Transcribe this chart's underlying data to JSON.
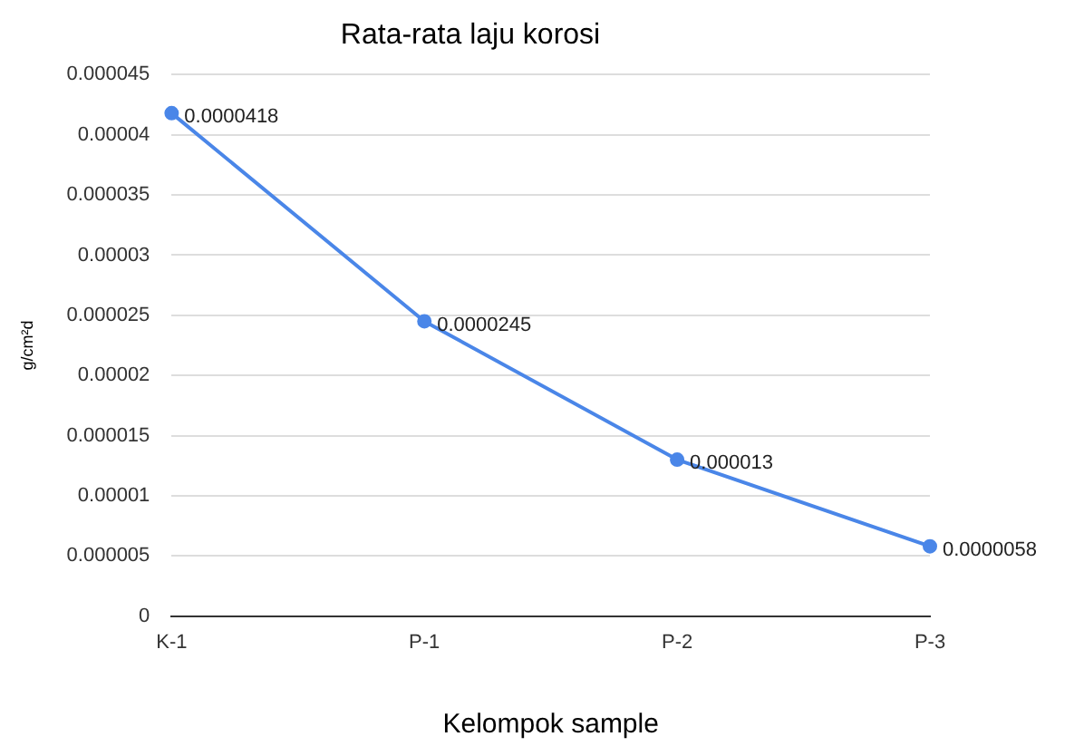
{
  "chart_data": {
    "type": "line",
    "title": "Rata-rata laju korosi",
    "xlabel": "Kelompok sample",
    "ylabel": "g/cm²d",
    "categories": [
      "K-1",
      "P-1",
      "P-2",
      "P-3"
    ],
    "series": [
      {
        "color": "#4a86e8",
        "values": [
          4.18e-05,
          2.45e-05,
          1.3e-05,
          5.8e-06
        ],
        "value_labels": [
          "0.0000418",
          "0.0000245",
          "0.000013",
          "0.0000058"
        ]
      }
    ],
    "ylim": [
      0,
      4.5e-05
    ],
    "yticks": [
      0,
      {
        "value": 5e-06,
        "label": "0.000005"
      },
      {
        "value": 1e-05,
        "label": "0.00001"
      },
      {
        "value": 1.5e-05,
        "label": "0.000015"
      },
      {
        "value": 2e-05,
        "label": "0.00002"
      },
      {
        "value": 2.5e-05,
        "label": "0.000025"
      },
      {
        "value": 3e-05,
        "label": "0.00003"
      },
      {
        "value": 3.5e-05,
        "label": "0.000035"
      },
      {
        "value": 4e-05,
        "label": "0.00004"
      },
      {
        "value": 4.5e-05,
        "label": "0.000045"
      }
    ],
    "grid": "y",
    "legend": false,
    "marker": "circle",
    "line_style": "solid"
  }
}
